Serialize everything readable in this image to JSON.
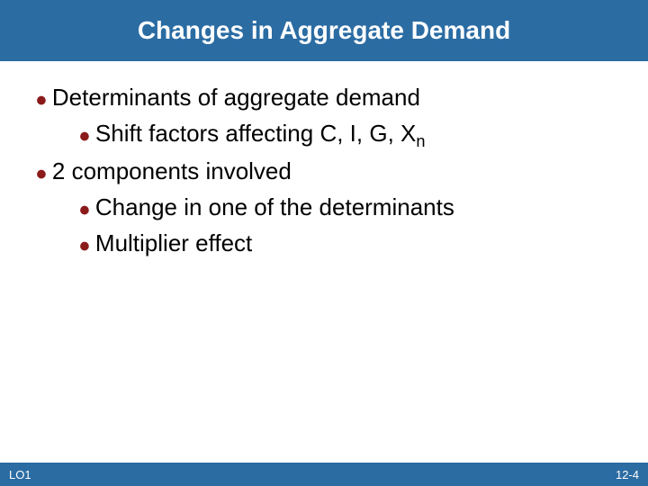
{
  "colors": {
    "title_bg": "#2b6ca3",
    "footer_bg": "#2b6ca3",
    "bullet": "#8b1a1a",
    "title_text": "#ffffff",
    "body_text": "#000000"
  },
  "title": "Changes in Aggregate Demand",
  "bullets": {
    "l1_a": "Determinants of aggregate demand",
    "l2_a": "Shift factors affecting C, I, G, X",
    "l2_a_sub": "n",
    "l1_b": "2 components involved",
    "l2_b": "Change in one of the determinants",
    "l2_c": "Multiplier effect"
  },
  "footer": {
    "lo": "LO1",
    "page": "12-4"
  }
}
